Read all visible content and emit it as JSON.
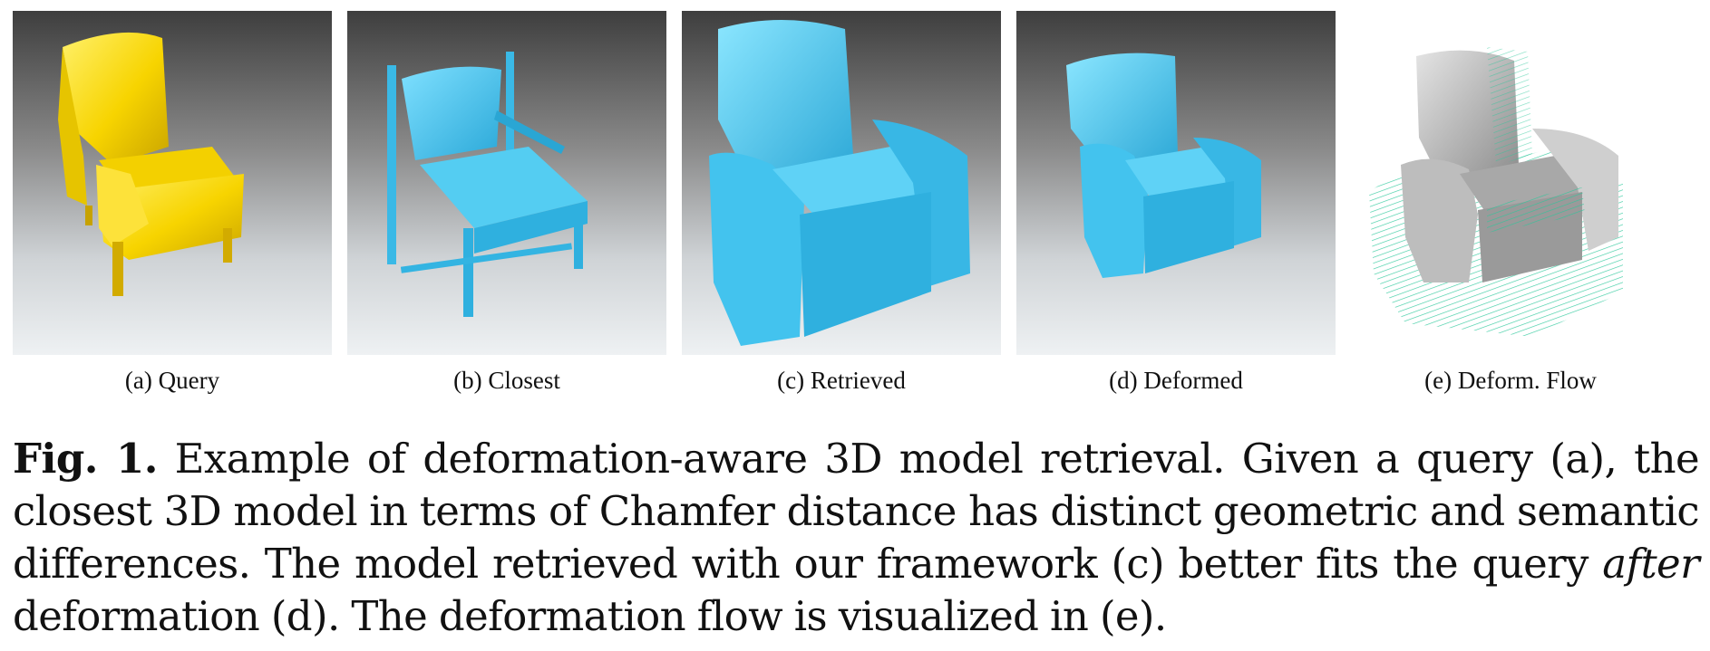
{
  "figure": {
    "subfigures": [
      {
        "id": "a",
        "label": "(a) Query",
        "color": "#f5d400"
      },
      {
        "id": "b",
        "label": "(b) Closest",
        "color": "#45c8ef"
      },
      {
        "id": "c",
        "label": "(c) Retrieved",
        "color": "#45c8ef"
      },
      {
        "id": "d",
        "label": "(d) Deformed",
        "color": "#45c8ef"
      },
      {
        "id": "e",
        "label": "(e) Deform. Flow",
        "color": "#b9b9b9",
        "flow_color": "#29c79a"
      }
    ],
    "caption": {
      "label": "Fig. 1.",
      "part1": " Example of deformation-aware 3D model retrieval. Given a query (a), the closest 3D model in terms of Chamfer distance has distinct geometric and semantic differences. The model retrieved with our framework (c) better fits the query ",
      "emphasis": "after",
      "part2": " deformation (d). The deformation flow is visualized in (e)."
    }
  }
}
